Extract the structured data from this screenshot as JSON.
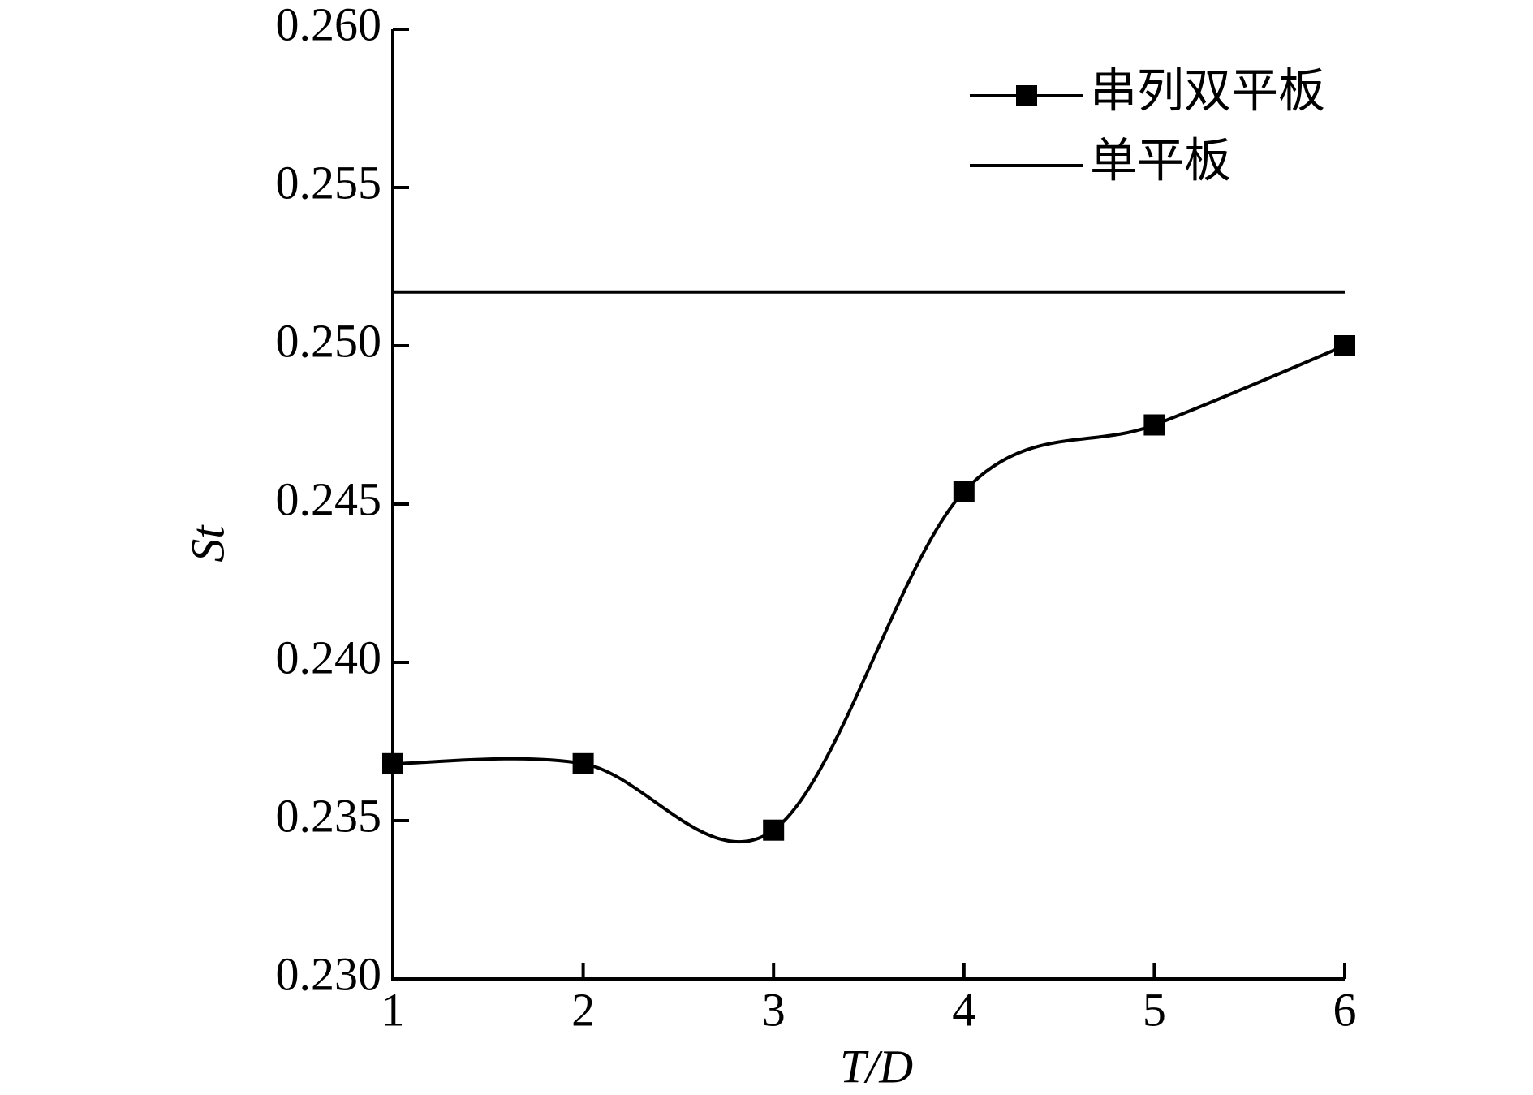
{
  "chart_data": {
    "type": "line",
    "x_label": "T/D",
    "y_label": "St",
    "x": [
      1,
      2,
      3,
      4,
      5,
      6
    ],
    "series": [
      {
        "name": "串列双平板",
        "color": "#000000",
        "marker": "square",
        "smooth": true,
        "values": [
          0.2368,
          0.2368,
          0.2347,
          0.2454,
          0.2475,
          0.25
        ]
      },
      {
        "name": "单平板",
        "color": "#000000",
        "marker": "none",
        "smooth": false,
        "values": [
          0.2517,
          0.2517,
          0.2517,
          0.2517,
          0.2517,
          0.2517
        ]
      }
    ],
    "xlim": [
      1,
      6
    ],
    "xticks": [
      1,
      2,
      3,
      4,
      5,
      6
    ],
    "ylim": [
      0.23,
      0.26
    ],
    "yticks": [
      {
        "value": 0.23,
        "label": "0.230"
      },
      {
        "value": 0.235,
        "label": "0.235"
      },
      {
        "value": 0.24,
        "label": "0.240"
      },
      {
        "value": 0.245,
        "label": "0.245"
      },
      {
        "value": 0.25,
        "label": "0.250"
      },
      {
        "value": 0.255,
        "label": "0.255"
      },
      {
        "value": 0.26,
        "label": "0.260"
      }
    ],
    "grid": false,
    "legend": "top-right"
  }
}
